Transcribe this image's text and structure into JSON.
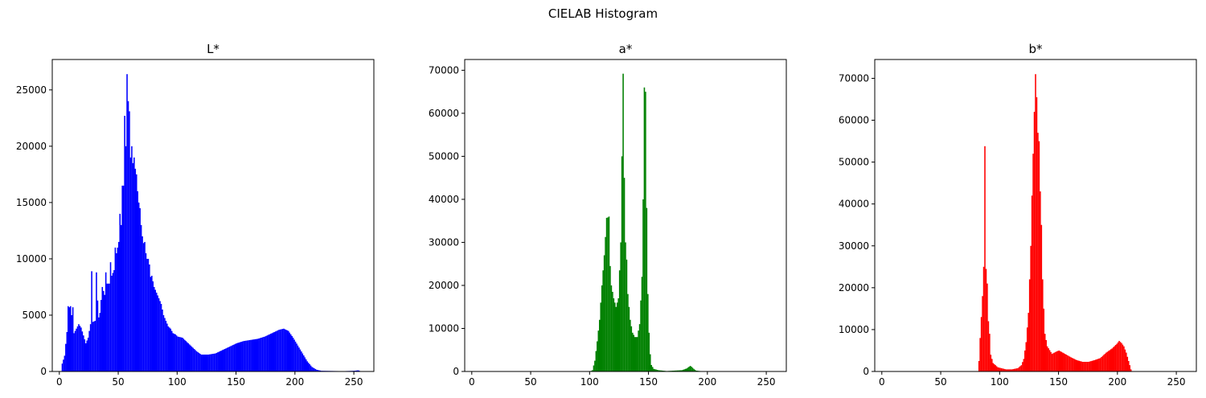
{
  "figure": {
    "title": "CIELAB Histogram"
  },
  "chart_data": [
    {
      "type": "bar",
      "title": "L*",
      "color": "#0000ff",
      "xlim": [
        -6,
        267
      ],
      "ylim": [
        0,
        27700
      ],
      "xticks": [
        0,
        50,
        100,
        150,
        200,
        250
      ],
      "yticks": [
        0,
        5000,
        10000,
        15000,
        20000,
        25000
      ],
      "knots": [
        [
          0,
          0
        ],
        [
          1,
          0
        ],
        [
          2,
          700
        ],
        [
          4,
          1400
        ],
        [
          6,
          3500
        ],
        [
          8,
          5700
        ],
        [
          10,
          5000
        ],
        [
          12,
          3400
        ],
        [
          14,
          3800
        ],
        [
          16,
          4200
        ],
        [
          18,
          3900
        ],
        [
          20,
          3200
        ],
        [
          22,
          2500
        ],
        [
          24,
          3000
        ],
        [
          26,
          4200
        ],
        [
          28,
          4400
        ],
        [
          30,
          4500
        ],
        [
          32,
          6300
        ],
        [
          34,
          5200
        ],
        [
          36,
          7500
        ],
        [
          38,
          6800
        ],
        [
          40,
          7800
        ],
        [
          42,
          7800
        ],
        [
          44,
          8500
        ],
        [
          46,
          9000
        ],
        [
          48,
          10500
        ],
        [
          50,
          11500
        ],
        [
          52,
          13000
        ],
        [
          54,
          16500
        ],
        [
          56,
          20000
        ],
        [
          57,
          26300
        ],
        [
          58,
          24000
        ],
        [
          60,
          19000
        ],
        [
          62,
          18500
        ],
        [
          64,
          18000
        ],
        [
          66,
          16000
        ],
        [
          68,
          14500
        ],
        [
          70,
          12000
        ],
        [
          72,
          11500
        ],
        [
          74,
          10000
        ],
        [
          76,
          9500
        ],
        [
          78,
          8500
        ],
        [
          80,
          7500
        ],
        [
          82,
          7000
        ],
        [
          84,
          6500
        ],
        [
          86,
          6000
        ],
        [
          88,
          5000
        ],
        [
          90,
          4500
        ],
        [
          92,
          4000
        ],
        [
          94,
          3800
        ],
        [
          96,
          3400
        ],
        [
          98,
          3300
        ],
        [
          100,
          3100
        ],
        [
          104,
          3000
        ],
        [
          108,
          2600
        ],
        [
          112,
          2200
        ],
        [
          116,
          1800
        ],
        [
          120,
          1500
        ],
        [
          126,
          1500
        ],
        [
          132,
          1600
        ],
        [
          138,
          1900
        ],
        [
          144,
          2200
        ],
        [
          150,
          2500
        ],
        [
          156,
          2700
        ],
        [
          162,
          2800
        ],
        [
          168,
          2900
        ],
        [
          174,
          3100
        ],
        [
          180,
          3400
        ],
        [
          186,
          3700
        ],
        [
          190,
          3800
        ],
        [
          194,
          3600
        ],
        [
          198,
          3000
        ],
        [
          202,
          2300
        ],
        [
          206,
          1600
        ],
        [
          210,
          900
        ],
        [
          214,
          400
        ],
        [
          218,
          150
        ],
        [
          222,
          60
        ],
        [
          240,
          30
        ],
        [
          250,
          60
        ],
        [
          253,
          100
        ],
        [
          254,
          80
        ],
        [
          255,
          0
        ]
      ],
      "spikes": [
        [
          4,
          1400
        ],
        [
          7,
          5800
        ],
        [
          9,
          5800
        ],
        [
          11,
          5700
        ],
        [
          27,
          8900
        ],
        [
          31,
          8800
        ],
        [
          33,
          4800
        ],
        [
          39,
          8800
        ],
        [
          43,
          9700
        ],
        [
          47,
          11000
        ],
        [
          51,
          14000
        ],
        [
          53,
          16500
        ],
        [
          55,
          22700
        ],
        [
          57,
          26400
        ],
        [
          59,
          23100
        ],
        [
          61,
          20000
        ],
        [
          63,
          19000
        ],
        [
          65,
          17500
        ],
        [
          67,
          15000
        ],
        [
          69,
          13000
        ],
        [
          71,
          11400
        ],
        [
          73,
          10500
        ],
        [
          75,
          10000
        ],
        [
          77,
          8400
        ]
      ]
    },
    {
      "type": "bar",
      "title": "a*",
      "color": "#008000",
      "xlim": [
        -6,
        267
      ],
      "ylim": [
        0,
        72500
      ],
      "xticks": [
        0,
        50,
        100,
        150,
        200,
        250
      ],
      "yticks": [
        0,
        10000,
        20000,
        30000,
        40000,
        50000,
        60000,
        70000
      ],
      "knots": [
        [
          0,
          0
        ],
        [
          100,
          0
        ],
        [
          102,
          300
        ],
        [
          104,
          2500
        ],
        [
          106,
          7000
        ],
        [
          108,
          12000
        ],
        [
          110,
          20000
        ],
        [
          112,
          27000
        ],
        [
          114,
          35500
        ],
        [
          115,
          35800
        ],
        [
          116,
          29000
        ],
        [
          118,
          20000
        ],
        [
          120,
          17000
        ],
        [
          122,
          15000
        ],
        [
          124,
          17000
        ],
        [
          126,
          30000
        ],
        [
          127,
          50000
        ],
        [
          128,
          69000
        ],
        [
          129,
          45000
        ],
        [
          130,
          30000
        ],
        [
          131,
          26000
        ],
        [
          132,
          18000
        ],
        [
          134,
          12000
        ],
        [
          136,
          9000
        ],
        [
          138,
          8000
        ],
        [
          140,
          8000
        ],
        [
          142,
          11000
        ],
        [
          144,
          22000
        ],
        [
          145,
          40000
        ],
        [
          146,
          66000
        ],
        [
          147,
          60000
        ],
        [
          148,
          38000
        ],
        [
          149,
          18000
        ],
        [
          150,
          9000
        ],
        [
          151,
          4000
        ],
        [
          152,
          1500
        ],
        [
          154,
          600
        ],
        [
          158,
          300
        ],
        [
          165,
          100
        ],
        [
          178,
          300
        ],
        [
          182,
          700
        ],
        [
          185,
          1300
        ],
        [
          186,
          1100
        ],
        [
          188,
          600
        ],
        [
          190,
          200
        ],
        [
          195,
          50
        ],
        [
          255,
          0
        ]
      ],
      "spikes": [
        [
          114,
          35700
        ],
        [
          116,
          36000
        ],
        [
          128,
          69200
        ],
        [
          146,
          66000
        ],
        [
          147,
          65000
        ]
      ]
    },
    {
      "type": "bar",
      "title": "b*",
      "color": "#ff0000",
      "xlim": [
        -6,
        267
      ],
      "ylim": [
        0,
        74500
      ],
      "xticks": [
        0,
        50,
        100,
        150,
        200,
        250
      ],
      "yticks": [
        0,
        10000,
        20000,
        30000,
        40000,
        50000,
        60000,
        70000
      ],
      "knots": [
        [
          0,
          0
        ],
        [
          81,
          0
        ],
        [
          82,
          2500
        ],
        [
          83,
          8000
        ],
        [
          84,
          13000
        ],
        [
          85,
          18000
        ],
        [
          86,
          25000
        ],
        [
          87,
          40000
        ],
        [
          88,
          24000
        ],
        [
          89,
          21000
        ],
        [
          90,
          12000
        ],
        [
          91,
          9000
        ],
        [
          92,
          4000
        ],
        [
          94,
          2000
        ],
        [
          98,
          1000
        ],
        [
          105,
          500
        ],
        [
          110,
          500
        ],
        [
          115,
          800
        ],
        [
          118,
          1500
        ],
        [
          120,
          3000
        ],
        [
          122,
          7000
        ],
        [
          124,
          14000
        ],
        [
          125,
          22000
        ],
        [
          126,
          30000
        ],
        [
          127,
          42000
        ],
        [
          128,
          52000
        ],
        [
          129,
          62000
        ],
        [
          130,
          70000
        ],
        [
          131,
          65000
        ],
        [
          132,
          57000
        ],
        [
          133,
          52000
        ],
        [
          134,
          43000
        ],
        [
          135,
          35000
        ],
        [
          136,
          22000
        ],
        [
          137,
          15000
        ],
        [
          138,
          9000
        ],
        [
          140,
          6000
        ],
        [
          144,
          4200
        ],
        [
          148,
          4800
        ],
        [
          150,
          5000
        ],
        [
          155,
          4200
        ],
        [
          160,
          3400
        ],
        [
          165,
          2700
        ],
        [
          170,
          2300
        ],
        [
          175,
          2300
        ],
        [
          180,
          2700
        ],
        [
          185,
          3200
        ],
        [
          190,
          4500
        ],
        [
          195,
          5500
        ],
        [
          199,
          6600
        ],
        [
          201,
          7300
        ],
        [
          203,
          6800
        ],
        [
          205,
          6000
        ],
        [
          207,
          4500
        ],
        [
          209,
          2500
        ],
        [
          211,
          500
        ],
        [
          212,
          0
        ],
        [
          255,
          0
        ]
      ],
      "spikes": [
        [
          87,
          53800
        ],
        [
          88,
          24500
        ],
        [
          130,
          71000
        ],
        [
          131,
          65500
        ],
        [
          133,
          55000
        ]
      ]
    }
  ]
}
